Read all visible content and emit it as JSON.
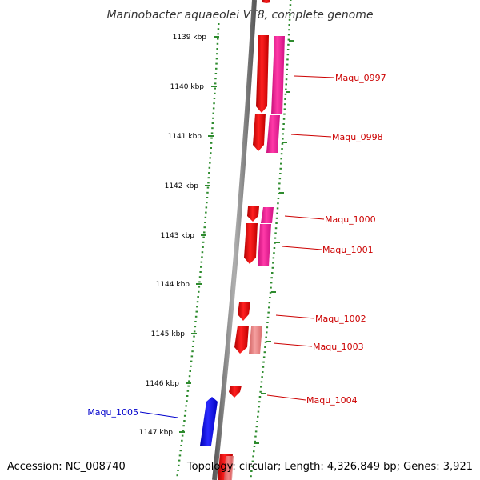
{
  "title": "Marinobacter aquaeolei VT8, complete genome",
  "footer": {
    "accession": "Accession: NC_008740",
    "topology": "Topology: circular; Length: 4,326,849 bp; Genes: 3,921"
  },
  "colors": {
    "backbone": "#808080",
    "tick": "#2e8b2e",
    "gene_red": "#ff0000",
    "gene_magenta": "#ff1493",
    "gene_pink": "#f08080",
    "gene_blue": "#0000ff",
    "label_red": "#cc0000",
    "label_blue": "#0000cc"
  },
  "kbp_labels": [
    {
      "kbp": 1139,
      "text": "1139 kbp"
    },
    {
      "kbp": 1140,
      "text": "1140 kbp"
    },
    {
      "kbp": 1141,
      "text": "1141 kbp"
    },
    {
      "kbp": 1142,
      "text": "1142 kbp"
    },
    {
      "kbp": 1143,
      "text": "1143 kbp"
    },
    {
      "kbp": 1144,
      "text": "1144 kbp"
    },
    {
      "kbp": 1145,
      "text": "1145 kbp"
    },
    {
      "kbp": 1146,
      "text": "1146 kbp"
    },
    {
      "kbp": 1147,
      "text": "1147 kbp"
    }
  ],
  "gene_labels": [
    {
      "text": "Maqu_0997",
      "color": "red"
    },
    {
      "text": "Maqu_0998",
      "color": "red"
    },
    {
      "text": "Maqu_1000",
      "color": "red"
    },
    {
      "text": "Maqu_1001",
      "color": "red"
    },
    {
      "text": "Maqu_1002",
      "color": "red"
    },
    {
      "text": "Maqu_1003",
      "color": "red"
    },
    {
      "text": "Maqu_1004",
      "color": "red"
    },
    {
      "text": "Maqu_1005",
      "color": "blue"
    }
  ]
}
